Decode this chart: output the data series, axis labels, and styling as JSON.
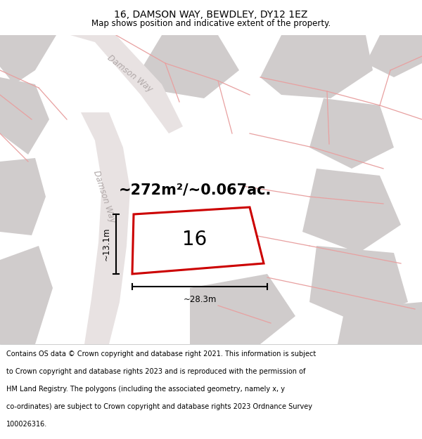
{
  "title": "16, DAMSON WAY, BEWDLEY, DY12 1EZ",
  "subtitle": "Map shows position and indicative extent of the property.",
  "area_text": "~272m²/~0.067ac.",
  "number_label": "16",
  "width_label": "~28.3m",
  "height_label": "~13.1m",
  "road_label_1": "Damson Way",
  "road_label_2": "Damson Way",
  "map_bg": "#f2eded",
  "plot_outline_color": "#cc0000",
  "plot_fill_color": "#ffffff",
  "gray_block_color": "#d0cccc",
  "pink_line_color": "#e8a0a0",
  "dim_line_color": "#000000",
  "road_fill_color": "#e8e2e2",
  "title_fontsize": 10,
  "subtitle_fontsize": 8.5,
  "footer_fontsize": 7.0,
  "area_fontsize": 15,
  "number_fontsize": 20,
  "label_fontsize": 8.5,
  "road_fontsize": 8.5,
  "footer_lines": [
    "Contains OS data © Crown copyright and database right 2021. This information is subject",
    "to Crown copyright and database rights 2023 and is reproduced with the permission of",
    "HM Land Registry. The polygons (including the associated geometry, namely x, y",
    "co-ordinates) are subject to Crown copyright and database rights 2023 Ordnance Survey",
    "100026316."
  ]
}
